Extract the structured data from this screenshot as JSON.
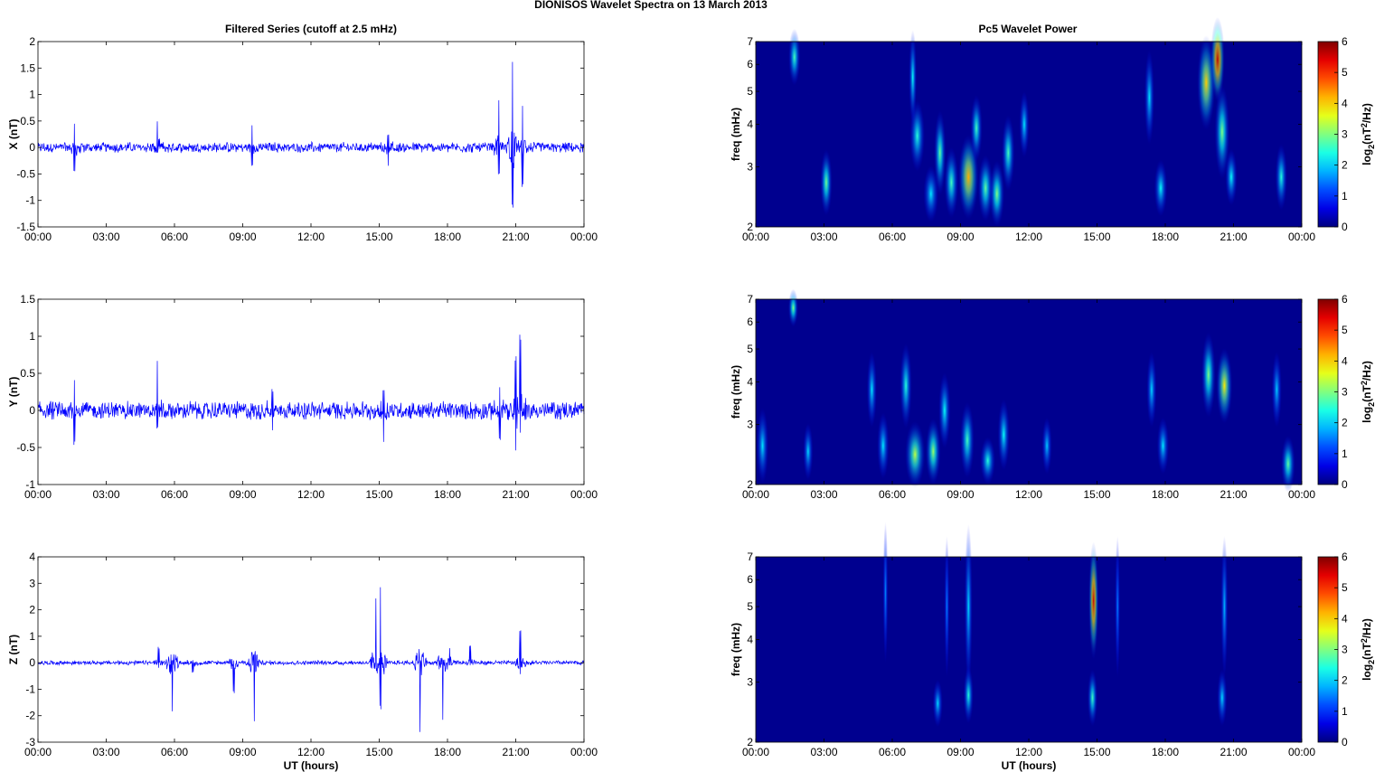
{
  "figure": {
    "title": "DIONISOS Wavelet Spectra on 13 March     2013",
    "left_column_title": "Filtered Series (cutoff at 2.5 mHz)",
    "right_column_title": "Pc5 Wavelet Power"
  },
  "chart_data": [
    {
      "type": "line",
      "component": "X",
      "ylabel": "X (nT)",
      "xlabel": "",
      "x_range_hours": [
        0,
        24
      ],
      "x_ticks": [
        "00:00",
        "03:00",
        "06:00",
        "09:00",
        "12:00",
        "15:00",
        "18:00",
        "21:00",
        "00:00"
      ],
      "ylim": [
        -1.5,
        2
      ],
      "y_ticks": [
        "-1.5",
        "-1",
        "-0.5",
        "0",
        "0.5",
        "1",
        "1.5",
        "2"
      ],
      "color": "#0000ff",
      "baseline_amplitude": 0.08,
      "spikes": [
        {
          "t": 1.6,
          "min": -0.5,
          "max": 0.45
        },
        {
          "t": 5.25,
          "min": -0.1,
          "max": 0.52
        },
        {
          "t": 9.4,
          "min": -0.35,
          "max": 0.45
        },
        {
          "t": 15.4,
          "min": -0.4,
          "max": 0.25
        },
        {
          "t": 20.25,
          "min": -0.55,
          "max": 0.9
        },
        {
          "t": 20.85,
          "min": -1.25,
          "max": 1.7
        },
        {
          "t": 21.3,
          "min": -0.75,
          "max": 0.9
        }
      ]
    },
    {
      "type": "heatmap",
      "component": "X",
      "ylabel": "freq (mHz)",
      "xlabel": "",
      "x_range_hours": [
        0,
        24
      ],
      "x_ticks": [
        "00:00",
        "03:00",
        "06:00",
        "09:00",
        "12:00",
        "15:00",
        "18:00",
        "21:00",
        "00:00"
      ],
      "y_scale": "log",
      "ylim": [
        2,
        7
      ],
      "y_ticks": [
        "2",
        "3",
        "4",
        "5",
        "6",
        "7"
      ],
      "colorbar_label": "log2(nT2/Hz)",
      "colorbar_ticks": [
        "0",
        "1",
        "2",
        "3",
        "4",
        "5",
        "6"
      ],
      "clim": [
        0,
        6
      ],
      "colormap": "jet",
      "blobs": [
        {
          "t": 1.7,
          "f": 6.3,
          "dt": 0.12,
          "df": 0.12,
          "v": 2.2
        },
        {
          "t": 3.1,
          "f": 2.7,
          "dt": 0.12,
          "df": 0.14,
          "v": 2.5
        },
        {
          "t": 6.9,
          "f": 5.5,
          "dt": 0.08,
          "df": 0.2,
          "v": 1.8
        },
        {
          "t": 7.1,
          "f": 3.7,
          "dt": 0.15,
          "df": 0.15,
          "v": 2.0
        },
        {
          "t": 7.7,
          "f": 2.5,
          "dt": 0.15,
          "df": 0.12,
          "v": 1.6
        },
        {
          "t": 8.1,
          "f": 3.3,
          "dt": 0.12,
          "df": 0.18,
          "v": 2.4
        },
        {
          "t": 8.6,
          "f": 2.7,
          "dt": 0.14,
          "df": 0.15,
          "v": 2.2
        },
        {
          "t": 9.35,
          "f": 2.8,
          "dt": 0.2,
          "df": 0.18,
          "v": 4.0
        },
        {
          "t": 9.7,
          "f": 3.9,
          "dt": 0.12,
          "df": 0.14,
          "v": 2.2
        },
        {
          "t": 10.1,
          "f": 2.6,
          "dt": 0.15,
          "df": 0.14,
          "v": 2.4
        },
        {
          "t": 10.6,
          "f": 2.5,
          "dt": 0.15,
          "df": 0.14,
          "v": 2.6
        },
        {
          "t": 11.1,
          "f": 3.3,
          "dt": 0.13,
          "df": 0.16,
          "v": 2.2
        },
        {
          "t": 11.8,
          "f": 4.0,
          "dt": 0.1,
          "df": 0.14,
          "v": 1.6
        },
        {
          "t": 17.3,
          "f": 4.8,
          "dt": 0.1,
          "df": 0.2,
          "v": 1.6
        },
        {
          "t": 17.8,
          "f": 2.6,
          "dt": 0.13,
          "df": 0.12,
          "v": 1.8
        },
        {
          "t": 19.8,
          "f": 5.3,
          "dt": 0.18,
          "df": 0.2,
          "v": 3.8
        },
        {
          "t": 20.3,
          "f": 6.2,
          "dt": 0.14,
          "df": 0.18,
          "v": 5.6
        },
        {
          "t": 20.5,
          "f": 3.8,
          "dt": 0.15,
          "df": 0.2,
          "v": 2.6
        },
        {
          "t": 20.9,
          "f": 2.8,
          "dt": 0.12,
          "df": 0.12,
          "v": 1.8
        },
        {
          "t": 23.1,
          "f": 2.8,
          "dt": 0.12,
          "df": 0.14,
          "v": 2.0
        }
      ]
    },
    {
      "type": "line",
      "component": "Y",
      "ylabel": "Y (nT)",
      "xlabel": "",
      "x_range_hours": [
        0,
        24
      ],
      "x_ticks": [
        "00:00",
        "03:00",
        "06:00",
        "09:00",
        "12:00",
        "15:00",
        "18:00",
        "21:00",
        "00:00"
      ],
      "ylim": [
        -1,
        1.5
      ],
      "y_ticks": [
        "-1",
        "-0.5",
        "0",
        "0.5",
        "1",
        "1.5"
      ],
      "color": "#0000ff",
      "baseline_amplitude": 0.1,
      "spikes": [
        {
          "t": 1.6,
          "min": -0.48,
          "max": 0.48
        },
        {
          "t": 5.25,
          "min": -0.25,
          "max": 0.75
        },
        {
          "t": 10.3,
          "min": -0.3,
          "max": 0.3
        },
        {
          "t": 15.2,
          "min": -0.45,
          "max": 0.3
        },
        {
          "t": 20.3,
          "min": -0.4,
          "max": 0.35
        },
        {
          "t": 21.0,
          "min": -0.55,
          "max": 0.7
        },
        {
          "t": 21.2,
          "min": -0.3,
          "max": 1.1
        }
      ]
    },
    {
      "type": "heatmap",
      "component": "Y",
      "ylabel": "freq (mHz)",
      "xlabel": "",
      "x_range_hours": [
        0,
        24
      ],
      "x_ticks": [
        "00:00",
        "03:00",
        "06:00",
        "09:00",
        "12:00",
        "15:00",
        "18:00",
        "21:00",
        "00:00"
      ],
      "y_scale": "log",
      "ylim": [
        2,
        7
      ],
      "y_ticks": [
        "2",
        "3",
        "4",
        "5",
        "6",
        "7"
      ],
      "colorbar_label": "log2(nT2/Hz)",
      "colorbar_ticks": [
        "0",
        "1",
        "2",
        "3",
        "4",
        "5",
        "6"
      ],
      "clim": [
        0,
        6
      ],
      "colormap": "jet",
      "blobs": [
        {
          "t": 0.3,
          "f": 2.6,
          "dt": 0.12,
          "df": 0.16,
          "v": 1.6
        },
        {
          "t": 1.65,
          "f": 6.6,
          "dt": 0.1,
          "df": 0.08,
          "v": 2.6
        },
        {
          "t": 2.3,
          "f": 2.5,
          "dt": 0.1,
          "df": 0.12,
          "v": 1.5
        },
        {
          "t": 5.1,
          "f": 3.8,
          "dt": 0.1,
          "df": 0.16,
          "v": 1.6
        },
        {
          "t": 5.6,
          "f": 2.6,
          "dt": 0.12,
          "df": 0.14,
          "v": 1.6
        },
        {
          "t": 6.6,
          "f": 3.9,
          "dt": 0.12,
          "df": 0.18,
          "v": 2.0
        },
        {
          "t": 7.0,
          "f": 2.45,
          "dt": 0.2,
          "df": 0.14,
          "v": 3.0
        },
        {
          "t": 7.8,
          "f": 2.5,
          "dt": 0.15,
          "df": 0.14,
          "v": 2.8
        },
        {
          "t": 8.3,
          "f": 3.3,
          "dt": 0.12,
          "df": 0.16,
          "v": 1.8
        },
        {
          "t": 9.3,
          "f": 2.7,
          "dt": 0.14,
          "df": 0.16,
          "v": 2.2
        },
        {
          "t": 10.2,
          "f": 2.35,
          "dt": 0.15,
          "df": 0.1,
          "v": 2.0
        },
        {
          "t": 10.9,
          "f": 2.8,
          "dt": 0.12,
          "df": 0.15,
          "v": 1.8
        },
        {
          "t": 12.8,
          "f": 2.6,
          "dt": 0.1,
          "df": 0.12,
          "v": 1.4
        },
        {
          "t": 17.4,
          "f": 3.8,
          "dt": 0.1,
          "df": 0.16,
          "v": 1.5
        },
        {
          "t": 17.9,
          "f": 2.6,
          "dt": 0.12,
          "df": 0.12,
          "v": 1.6
        },
        {
          "t": 19.9,
          "f": 4.2,
          "dt": 0.14,
          "df": 0.18,
          "v": 2.6
        },
        {
          "t": 20.6,
          "f": 3.9,
          "dt": 0.16,
          "df": 0.16,
          "v": 3.6
        },
        {
          "t": 22.9,
          "f": 3.8,
          "dt": 0.1,
          "df": 0.16,
          "v": 1.4
        },
        {
          "t": 23.4,
          "f": 2.3,
          "dt": 0.14,
          "df": 0.12,
          "v": 2.4
        }
      ]
    },
    {
      "type": "line",
      "component": "Z",
      "ylabel": "Z (nT)",
      "xlabel": "UT (hours)",
      "x_range_hours": [
        0,
        24
      ],
      "x_ticks": [
        "00:00",
        "03:00",
        "06:00",
        "09:00",
        "12:00",
        "15:00",
        "18:00",
        "21:00",
        "00:00"
      ],
      "ylim": [
        -3,
        4
      ],
      "y_ticks": [
        "-3",
        "-2",
        "-1",
        "0",
        "1",
        "2",
        "3",
        "4"
      ],
      "color": "#0000ff",
      "baseline_amplitude": 0.07,
      "spikes": [
        {
          "t": 5.3,
          "min": -0.2,
          "max": 0.6
        },
        {
          "t": 5.9,
          "min": -2.15,
          "max": 0.1
        },
        {
          "t": 6.8,
          "min": -0.4,
          "max": 0.1
        },
        {
          "t": 8.6,
          "min": -1.2,
          "max": 0.1
        },
        {
          "t": 9.5,
          "min": -2.4,
          "max": 0.35
        },
        {
          "t": 14.85,
          "min": -0.3,
          "max": 2.3
        },
        {
          "t": 15.05,
          "min": -1.9,
          "max": 3.1
        },
        {
          "t": 16.8,
          "min": -2.7,
          "max": 0.1
        },
        {
          "t": 17.8,
          "min": -2.4,
          "max": 0.1
        },
        {
          "t": 18.1,
          "min": -0.1,
          "max": 0.6
        },
        {
          "t": 19.0,
          "min": -0.1,
          "max": 0.75
        },
        {
          "t": 21.2,
          "min": -0.45,
          "max": 1.3
        }
      ]
    },
    {
      "type": "heatmap",
      "component": "Z",
      "ylabel": "freq (mHz)",
      "xlabel": "UT (hours)",
      "x_range_hours": [
        0,
        24
      ],
      "x_ticks": [
        "00:00",
        "03:00",
        "06:00",
        "09:00",
        "12:00",
        "15:00",
        "18:00",
        "21:00",
        "00:00"
      ],
      "y_scale": "log",
      "ylim": [
        2,
        7
      ],
      "y_ticks": [
        "2",
        "3",
        "4",
        "5",
        "6",
        "7"
      ],
      "colorbar_label": "log2(nT2/Hz)",
      "colorbar_ticks": [
        "0",
        "1",
        "2",
        "3",
        "4",
        "5",
        "6"
      ],
      "clim": [
        0,
        6
      ],
      "colormap": "jet",
      "blobs": [
        {
          "t": 5.7,
          "f": 5.5,
          "dt": 0.05,
          "df": 0.3,
          "v": 1.0
        },
        {
          "t": 8.4,
          "f": 5.0,
          "dt": 0.05,
          "df": 0.3,
          "v": 0.9
        },
        {
          "t": 8.0,
          "f": 2.6,
          "dt": 0.1,
          "df": 0.1,
          "v": 1.5
        },
        {
          "t": 9.35,
          "f": 5.0,
          "dt": 0.08,
          "df": 0.35,
          "v": 1.5
        },
        {
          "t": 9.35,
          "f": 2.75,
          "dt": 0.1,
          "df": 0.12,
          "v": 2.0
        },
        {
          "t": 14.85,
          "f": 5.2,
          "dt": 0.1,
          "df": 0.25,
          "v": 5.5
        },
        {
          "t": 14.8,
          "f": 2.7,
          "dt": 0.1,
          "df": 0.12,
          "v": 2.2
        },
        {
          "t": 15.9,
          "f": 5.0,
          "dt": 0.05,
          "df": 0.3,
          "v": 0.9
        },
        {
          "t": 20.6,
          "f": 5.0,
          "dt": 0.07,
          "df": 0.3,
          "v": 1.3
        },
        {
          "t": 20.5,
          "f": 2.7,
          "dt": 0.1,
          "df": 0.12,
          "v": 1.5
        }
      ]
    }
  ]
}
